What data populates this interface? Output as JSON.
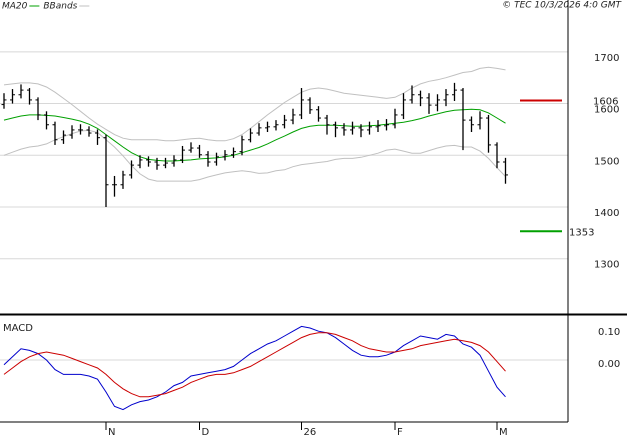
{
  "credit": "© TEC 10/3/2026 4:0 GMT",
  "chart_data": [
    {
      "type": "ohlc",
      "categories": [
        null,
        null,
        null,
        null,
        null,
        null,
        null,
        null,
        null,
        null,
        null,
        null,
        "N",
        null,
        null,
        null,
        null,
        null,
        null,
        null,
        null,
        null,
        null,
        "D",
        null,
        null,
        null,
        null,
        null,
        null,
        null,
        null,
        null,
        null,
        null,
        "26",
        null,
        null,
        null,
        null,
        null,
        null,
        null,
        null,
        null,
        null,
        "F",
        null,
        null,
        null,
        null,
        null,
        null,
        null,
        null,
        null,
        null,
        null,
        "M",
        null
      ],
      "open": [
        1598,
        1607,
        1617,
        1626,
        1607,
        1578,
        1559,
        1530,
        1539,
        1549,
        1549,
        1543,
        1534,
        1443,
        1443,
        1462,
        1481,
        1491,
        1487,
        1481,
        1485,
        1491,
        1510,
        1514,
        1501,
        1487,
        1497,
        1501,
        1507,
        1530,
        1543,
        1553,
        1555,
        1559,
        1568,
        1578,
        1607,
        1588,
        1572,
        1559,
        1553,
        1549,
        1553,
        1549,
        1555,
        1557,
        1559,
        1578,
        1607,
        1617,
        1611,
        1597,
        1607,
        1617,
        1626,
        1568,
        1559,
        1572,
        1520,
        1487
      ],
      "high": [
        1620,
        1628,
        1637,
        1630,
        1612,
        1585,
        1565,
        1548,
        1558,
        1560,
        1556,
        1550,
        1540,
        1460,
        1470,
        1490,
        1500,
        1498,
        1495,
        1495,
        1500,
        1518,
        1525,
        1520,
        1508,
        1505,
        1510,
        1515,
        1538,
        1552,
        1562,
        1565,
        1568,
        1578,
        1590,
        1630,
        1612,
        1595,
        1578,
        1565,
        1562,
        1565,
        1560,
        1565,
        1568,
        1570,
        1590,
        1620,
        1635,
        1625,
        1620,
        1618,
        1628,
        1640,
        1630,
        1575,
        1585,
        1578,
        1525,
        1495
      ],
      "low": [
        1590,
        1600,
        1610,
        1598,
        1568,
        1550,
        1520,
        1522,
        1532,
        1540,
        1536,
        1520,
        1400,
        1420,
        1435,
        1455,
        1475,
        1478,
        1472,
        1475,
        1478,
        1485,
        1505,
        1495,
        1478,
        1480,
        1490,
        1495,
        1500,
        1525,
        1538,
        1545,
        1548,
        1552,
        1560,
        1570,
        1580,
        1565,
        1540,
        1535,
        1538,
        1540,
        1535,
        1540,
        1545,
        1548,
        1552,
        1570,
        1600,
        1595,
        1580,
        1585,
        1595,
        1605,
        1510,
        1545,
        1550,
        1505,
        1475,
        1445
      ],
      "close": [
        1607,
        1617,
        1626,
        1607,
        1578,
        1559,
        1530,
        1539,
        1549,
        1549,
        1543,
        1534,
        1443,
        1443,
        1462,
        1481,
        1491,
        1487,
        1481,
        1485,
        1491,
        1510,
        1514,
        1501,
        1487,
        1497,
        1501,
        1507,
        1530,
        1543,
        1553,
        1555,
        1559,
        1568,
        1578,
        1607,
        1588,
        1572,
        1559,
        1553,
        1549,
        1553,
        1549,
        1555,
        1557,
        1559,
        1578,
        1607,
        1617,
        1611,
        1597,
        1607,
        1617,
        1626,
        1568,
        1559,
        1572,
        1520,
        1487,
        1462
      ],
      "bar_color": "#000000",
      "series": [
        {
          "name": "MA20",
          "color": "#00a000",
          "values": [
            1568,
            1572,
            1576,
            1578,
            1578,
            1577,
            1576,
            1573,
            1570,
            1566,
            1560,
            1552,
            1540,
            1528,
            1516,
            1505,
            1497,
            1492,
            1490,
            1489,
            1489,
            1490,
            1491,
            1493,
            1494,
            1495,
            1497,
            1500,
            1505,
            1510,
            1515,
            1522,
            1530,
            1537,
            1545,
            1552,
            1556,
            1558,
            1558,
            1558,
            1557,
            1556,
            1556,
            1557,
            1558,
            1560,
            1562,
            1564,
            1567,
            1571,
            1576,
            1580,
            1584,
            1587,
            1588,
            1589,
            1588,
            1582,
            1572,
            1562
          ]
        },
        {
          "name": "BBands",
          "color": "#c0c0c0",
          "upper": [
            1636,
            1638,
            1640,
            1640,
            1638,
            1632,
            1622,
            1610,
            1598,
            1585,
            1572,
            1560,
            1550,
            1540,
            1533,
            1530,
            1530,
            1530,
            1530,
            1528,
            1528,
            1530,
            1532,
            1533,
            1530,
            1528,
            1528,
            1532,
            1540,
            1552,
            1565,
            1578,
            1590,
            1602,
            1612,
            1622,
            1628,
            1630,
            1628,
            1624,
            1620,
            1618,
            1616,
            1614,
            1612,
            1610,
            1612,
            1620,
            1630,
            1638,
            1643,
            1646,
            1650,
            1655,
            1660,
            1662,
            1668,
            1670,
            1668,
            1665
          ],
          "lower": [
            1500,
            1506,
            1512,
            1516,
            1518,
            1522,
            1530,
            1536,
            1542,
            1547,
            1548,
            1544,
            1530,
            1516,
            1499,
            1480,
            1464,
            1454,
            1450,
            1450,
            1450,
            1450,
            1450,
            1453,
            1458,
            1462,
            1466,
            1468,
            1470,
            1468,
            1465,
            1466,
            1470,
            1472,
            1478,
            1482,
            1484,
            1486,
            1488,
            1492,
            1494,
            1494,
            1496,
            1500,
            1504,
            1510,
            1512,
            1508,
            1504,
            1504,
            1509,
            1514,
            1518,
            1519,
            1516,
            1516,
            1508,
            1494,
            1476,
            1459
          ]
        }
      ],
      "levels": [
        {
          "value": 1606,
          "color": "#cc0000"
        },
        {
          "value": 1353,
          "color": "#00a000"
        }
      ],
      "ylim": [
        1197,
        1777
      ],
      "yticks": [
        1300,
        1400,
        1500,
        1600,
        1700
      ],
      "grid": true
    },
    {
      "type": "macd",
      "title": "MACD",
      "series": [
        {
          "color": "#0000cc",
          "values": [
            -0.03,
            0.02,
            0.07,
            0.06,
            0.04,
            0.0,
            -0.06,
            -0.09,
            -0.09,
            -0.09,
            -0.1,
            -0.12,
            -0.2,
            -0.29,
            -0.31,
            -0.28,
            -0.26,
            -0.25,
            -0.23,
            -0.2,
            -0.16,
            -0.14,
            -0.1,
            -0.09,
            -0.08,
            -0.07,
            -0.06,
            -0.04,
            0.0,
            0.04,
            0.07,
            0.1,
            0.12,
            0.15,
            0.18,
            0.21,
            0.2,
            0.18,
            0.17,
            0.14,
            0.1,
            0.06,
            0.03,
            0.02,
            0.02,
            0.03,
            0.05,
            0.09,
            0.12,
            0.15,
            0.14,
            0.13,
            0.16,
            0.15,
            0.1,
            0.08,
            0.03,
            -0.07,
            -0.17,
            -0.23
          ]
        },
        {
          "color": "#cc0000",
          "values": [
            -0.09,
            -0.05,
            -0.01,
            0.02,
            0.04,
            0.05,
            0.04,
            0.03,
            0.01,
            -0.01,
            -0.03,
            -0.05,
            -0.09,
            -0.14,
            -0.18,
            -0.21,
            -0.23,
            -0.23,
            -0.22,
            -0.21,
            -0.19,
            -0.17,
            -0.14,
            -0.12,
            -0.1,
            -0.09,
            -0.09,
            -0.08,
            -0.06,
            -0.04,
            -0.01,
            0.02,
            0.05,
            0.08,
            0.11,
            0.14,
            0.16,
            0.17,
            0.17,
            0.16,
            0.14,
            0.12,
            0.09,
            0.07,
            0.06,
            0.05,
            0.05,
            0.06,
            0.07,
            0.09,
            0.1,
            0.11,
            0.12,
            0.13,
            0.12,
            0.11,
            0.09,
            0.05,
            -0.01,
            -0.07
          ]
        }
      ],
      "ylim": [
        -0.3875,
        0.2625
      ],
      "yticks": [
        {
          "value": 0,
          "label": "0.00"
        },
        {
          "value": 0.1,
          "label": "0.10"
        }
      ],
      "grid": true
    }
  ]
}
